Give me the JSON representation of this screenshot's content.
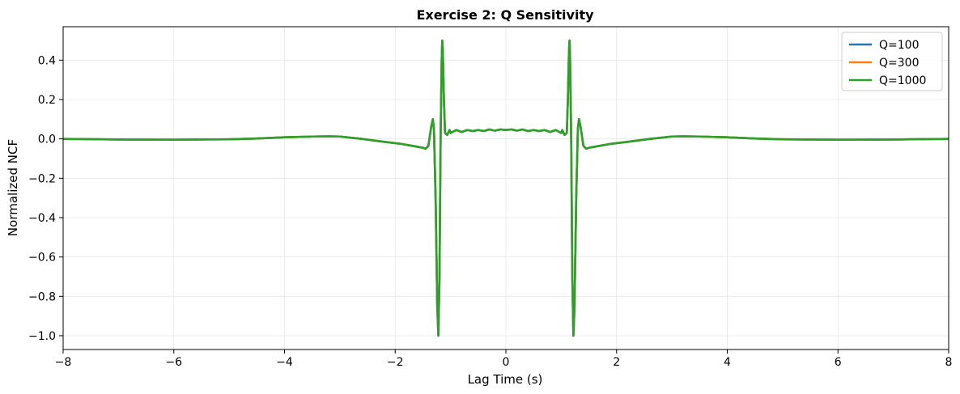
{
  "chart_data": {
    "type": "line",
    "title": "Exercise 2: Q Sensitivity",
    "xlabel": "Lag Time (s)",
    "ylabel": "Normalized NCF",
    "xlim": [
      -8,
      8
    ],
    "ylim": [
      -1.07,
      0.57
    ],
    "xticks": [
      -8,
      -6,
      -4,
      -2,
      0,
      2,
      4,
      6,
      8
    ],
    "yticks": [
      -1.0,
      -0.8,
      -0.6,
      -0.4,
      -0.2,
      0.0,
      0.2,
      0.4
    ],
    "xtick_labels": [
      "−8",
      "−6",
      "−4",
      "−2",
      "0",
      "2",
      "4",
      "6",
      "8"
    ],
    "ytick_labels": [
      "−1.0",
      "−0.8",
      "−0.6",
      "−0.4",
      "−0.2",
      "0.0",
      "0.2",
      "0.4"
    ],
    "grid": true,
    "legend_position": "top-right",
    "x": [
      -8.0,
      -7.0,
      -6.0,
      -5.0,
      -4.5,
      -4.0,
      -3.5,
      -3.2,
      -3.0,
      -2.6,
      -2.2,
      -1.9,
      -1.7,
      -1.6,
      -1.5,
      -1.45,
      -1.4,
      -1.35,
      -1.32,
      -1.3,
      -1.27,
      -1.24,
      -1.22,
      -1.2,
      -1.18,
      -1.16,
      -1.15,
      -1.14,
      -1.12,
      -1.1,
      -1.06,
      -1.02,
      -1.0,
      -0.9,
      -0.8,
      -0.7,
      -0.6,
      -0.5,
      -0.4,
      -0.3,
      -0.2,
      -0.1,
      0.0,
      0.1,
      0.2,
      0.3,
      0.4,
      0.5,
      0.6,
      0.7,
      0.8,
      0.9,
      1.0,
      1.02,
      1.06,
      1.1,
      1.12,
      1.14,
      1.15,
      1.16,
      1.18,
      1.2,
      1.22,
      1.24,
      1.27,
      1.3,
      1.32,
      1.35,
      1.4,
      1.45,
      1.5,
      1.6,
      1.7,
      1.9,
      2.2,
      2.6,
      3.0,
      3.2,
      3.5,
      4.0,
      4.5,
      5.0,
      6.0,
      7.0,
      8.0
    ],
    "series": [
      {
        "name": "Q=100",
        "color": "#1f77b4",
        "values": [
          0.0,
          -0.003,
          -0.004,
          -0.002,
          0.002,
          0.008,
          0.012,
          0.013,
          0.012,
          0.0,
          -0.015,
          -0.025,
          -0.035,
          -0.04,
          -0.045,
          -0.05,
          -0.035,
          0.06,
          0.1,
          0.05,
          -0.3,
          -0.85,
          -1.0,
          -0.7,
          0.0,
          0.4,
          0.5,
          0.45,
          0.2,
          0.03,
          0.02,
          0.045,
          0.03,
          0.045,
          0.035,
          0.045,
          0.04,
          0.045,
          0.04,
          0.048,
          0.042,
          0.048,
          0.045,
          0.048,
          0.042,
          0.048,
          0.04,
          0.045,
          0.04,
          0.045,
          0.035,
          0.045,
          0.03,
          0.045,
          0.02,
          0.03,
          0.2,
          0.45,
          0.5,
          0.4,
          0.0,
          -0.7,
          -1.0,
          -0.85,
          -0.3,
          0.05,
          0.1,
          0.06,
          -0.035,
          -0.05,
          -0.045,
          -0.04,
          -0.035,
          -0.025,
          -0.015,
          0.0,
          0.012,
          0.013,
          0.012,
          0.008,
          0.002,
          -0.002,
          -0.004,
          -0.003,
          0.0
        ]
      },
      {
        "name": "Q=300",
        "color": "#ff7f0e",
        "values": [
          0.0,
          -0.003,
          -0.004,
          -0.002,
          0.002,
          0.008,
          0.012,
          0.013,
          0.012,
          0.0,
          -0.015,
          -0.025,
          -0.035,
          -0.04,
          -0.045,
          -0.05,
          -0.035,
          0.06,
          0.1,
          0.05,
          -0.3,
          -0.85,
          -1.0,
          -0.7,
          0.0,
          0.4,
          0.5,
          0.45,
          0.2,
          0.03,
          0.02,
          0.045,
          0.03,
          0.045,
          0.035,
          0.045,
          0.04,
          0.045,
          0.04,
          0.048,
          0.042,
          0.048,
          0.045,
          0.048,
          0.042,
          0.048,
          0.04,
          0.045,
          0.04,
          0.045,
          0.035,
          0.045,
          0.03,
          0.045,
          0.02,
          0.03,
          0.2,
          0.45,
          0.5,
          0.4,
          0.0,
          -0.7,
          -1.0,
          -0.85,
          -0.3,
          0.05,
          0.1,
          0.06,
          -0.035,
          -0.05,
          -0.045,
          -0.04,
          -0.035,
          -0.025,
          -0.015,
          0.0,
          0.012,
          0.013,
          0.012,
          0.008,
          0.002,
          -0.002,
          -0.004,
          -0.003,
          0.0
        ]
      },
      {
        "name": "Q=1000",
        "color": "#2ca02c",
        "values": [
          0.0,
          -0.003,
          -0.004,
          -0.002,
          0.002,
          0.008,
          0.012,
          0.013,
          0.012,
          0.0,
          -0.015,
          -0.025,
          -0.035,
          -0.04,
          -0.045,
          -0.05,
          -0.035,
          0.06,
          0.1,
          0.05,
          -0.3,
          -0.85,
          -1.0,
          -0.7,
          0.0,
          0.4,
          0.5,
          0.45,
          0.2,
          0.03,
          0.02,
          0.045,
          0.03,
          0.045,
          0.035,
          0.045,
          0.04,
          0.045,
          0.04,
          0.048,
          0.042,
          0.048,
          0.045,
          0.048,
          0.042,
          0.048,
          0.04,
          0.045,
          0.04,
          0.045,
          0.035,
          0.045,
          0.03,
          0.045,
          0.02,
          0.03,
          0.2,
          0.45,
          0.5,
          0.4,
          0.0,
          -0.7,
          -1.0,
          -0.85,
          -0.3,
          0.05,
          0.1,
          0.06,
          -0.035,
          -0.05,
          -0.045,
          -0.04,
          -0.035,
          -0.025,
          -0.015,
          0.0,
          0.012,
          0.013,
          0.012,
          0.008,
          0.002,
          -0.002,
          -0.004,
          -0.003,
          0.0
        ]
      }
    ]
  }
}
